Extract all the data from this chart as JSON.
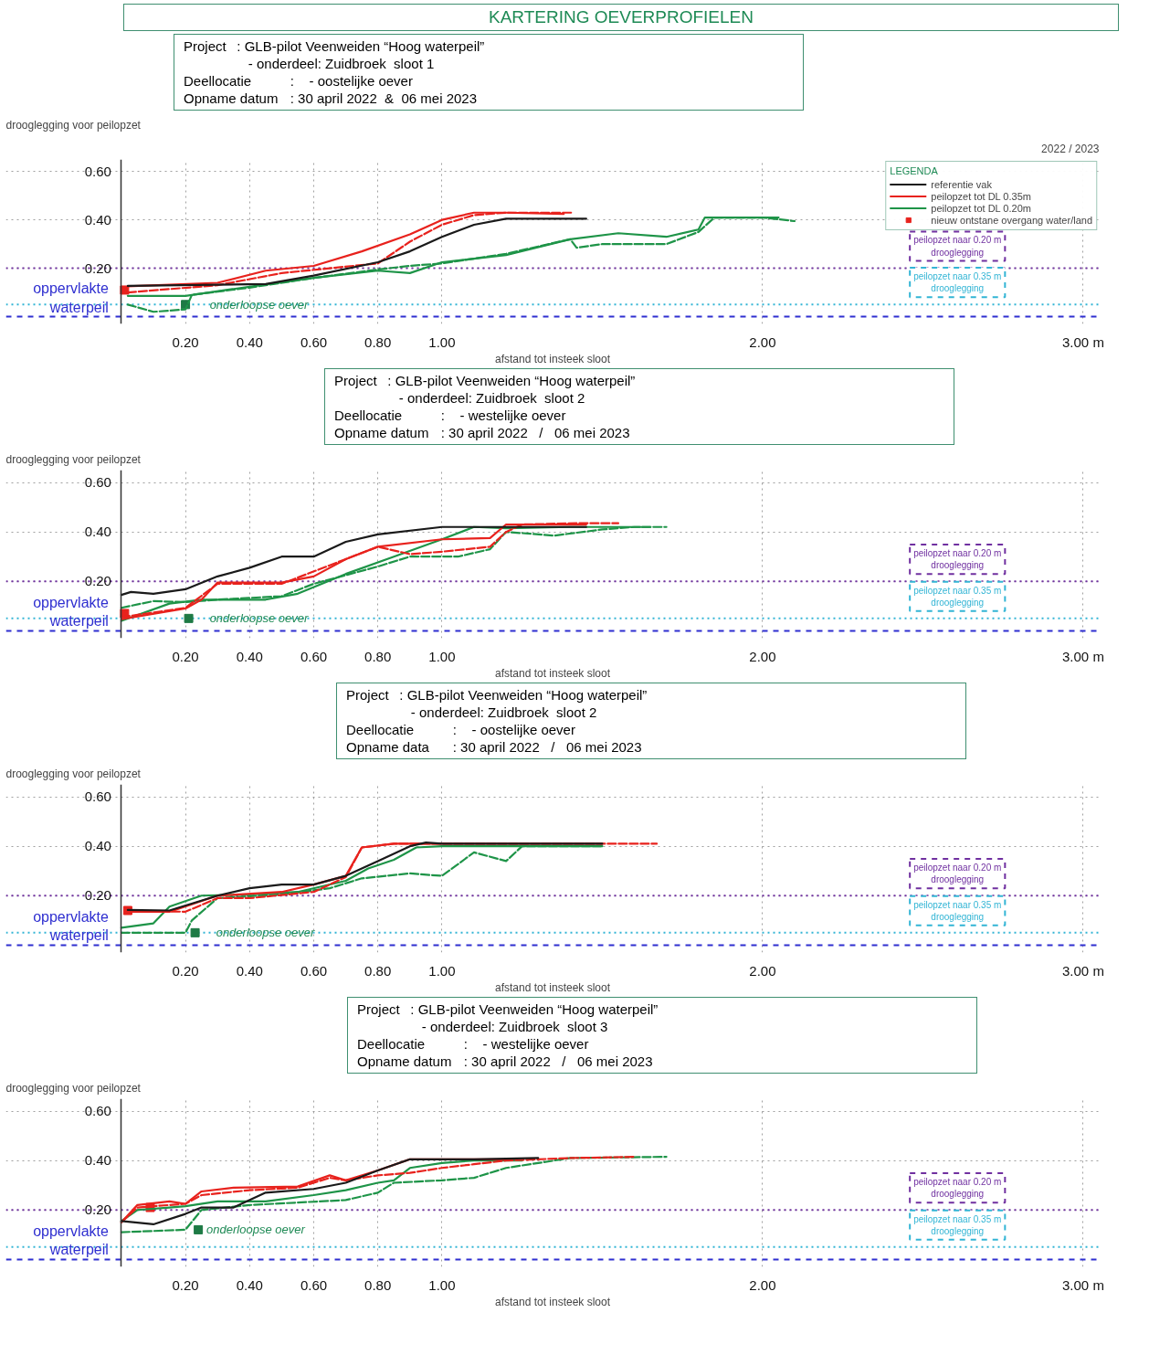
{
  "chart_data": [
    {
      "type": "line",
      "title": "KARTERING OEVERPROFIELEN",
      "subtitle": "2022 / 2023",
      "xlabel": "afstand tot insteek sloot",
      "ylabel": "drooglegging voor peilopzet",
      "legend": "top right",
      "legend_title": "LEGENDA",
      "grid": true,
      "xlim": [
        0,
        3.05
      ],
      "xticks": [
        {
          "value": 0.2,
          "label": "0.20"
        },
        {
          "value": 0.4,
          "label": "0.40"
        },
        {
          "value": 0.6,
          "label": "0.60"
        },
        {
          "value": 0.8,
          "label": "0.80"
        },
        {
          "value": 1.0,
          "label": "1.00"
        },
        {
          "value": 2.0,
          "label": "2.00"
        },
        {
          "value": 3.0,
          "label": "3.00 m"
        }
      ],
      "ylim": [
        -0.03,
        0.65
      ],
      "yticks": [
        {
          "value": 0.2,
          "label": "0.20"
        },
        {
          "value": 0.4,
          "label": "0.40"
        },
        {
          "value": 0.6,
          "label": "0.60"
        }
      ],
      "annotations": [
        "Project\t: GLB-pilot Veenweiden “Hoog waterpeil”",
        "\t   - onderdeel: Zuidbroek  sloot 1",
        "Deellocatie\t:    - oostelijke oever",
        "Opname datum\t: 30 april 2022  &  06 mei 2023",
        {
          "text": "onderloopse oever",
          "x": 0.25,
          "y": 0.05
        }
      ],
      "ref_lines": [
        {
          "axis": "y",
          "value": 0.2,
          "label": "peilopzet naar 0.20 m\ndrooglegging",
          "color": "#7030a0",
          "line_style": "dotted"
        },
        {
          "axis": "y",
          "value": 0.05,
          "label": "peilopzet naar 0.35 m\ndrooglegging",
          "color": "#33b5d5",
          "line_style": "dotted"
        },
        {
          "axis": "y",
          "value": 0,
          "label": "oppervlakte\nwaterpeil",
          "color": "#2f2fd0",
          "line_style": "dashed"
        }
      ],
      "series": [
        {
          "name": "referentie vak",
          "color": "#1a1a1a",
          "line_style": "solid",
          "x": [
            0.02,
            0.45,
            0.6,
            0.8,
            0.9,
            1.0,
            1.1,
            1.2,
            1.45
          ],
          "values": [
            0.127,
            0.135,
            0.17,
            0.225,
            0.27,
            0.33,
            0.38,
            0.405,
            0.405
          ]
        },
        {
          "name": "peilopzet tot DL 0.35m",
          "color": "#e8221d",
          "line_style": "solid",
          "x": [
            0.02,
            0.3,
            0.45,
            0.6,
            0.75,
            0.9,
            1.0,
            1.1,
            1.2,
            1.38
          ],
          "values": [
            0.125,
            0.14,
            0.19,
            0.21,
            0.27,
            0.34,
            0.4,
            0.43,
            0.43,
            0.425
          ]
        },
        {
          "color": "#e8221d",
          "line_style": "dashed",
          "x": [
            0.02,
            0.3,
            0.5,
            0.65,
            0.8,
            0.9,
            1.0,
            1.1,
            1.2,
            1.41
          ],
          "values": [
            0.1,
            0.13,
            0.18,
            0.2,
            0.22,
            0.31,
            0.38,
            0.42,
            0.43,
            0.43
          ]
        },
        {
          "name": "peilopzet tot DL 0.20m",
          "color": "#1e9448",
          "line_style": "solid",
          "x": [
            0.02,
            0.2,
            0.4,
            0.6,
            0.8,
            0.9,
            1.0,
            1.2,
            1.4,
            1.55,
            1.7,
            1.8,
            1.82,
            2.0,
            2.05
          ],
          "values": [
            0.086,
            0.086,
            0.124,
            0.16,
            0.19,
            0.18,
            0.225,
            0.255,
            0.32,
            0.345,
            0.33,
            0.36,
            0.41,
            0.41,
            0.41
          ]
        },
        {
          "color": "#1e9448",
          "line_style": "dashed",
          "x": [
            0.02,
            0.1,
            0.2,
            0.22,
            0.4,
            0.6,
            0.8,
            0.9,
            1.0,
            1.2,
            1.4,
            1.42,
            1.5,
            1.7,
            1.8,
            1.85,
            2.0,
            2.1
          ],
          "values": [
            0.05,
            0.02,
            0.03,
            0.09,
            0.12,
            0.16,
            0.195,
            0.21,
            0.22,
            0.26,
            0.32,
            0.285,
            0.3,
            0.3,
            0.35,
            0.41,
            0.41,
            0.395
          ]
        },
        {
          "type": "scatter",
          "name": "nieuw ontstane overgang water/land",
          "color": "#e8221d",
          "marker": "square",
          "x": [
            0.01
          ],
          "values": [
            0.11
          ]
        },
        {
          "type": "scatter",
          "color": "#1e7a45",
          "marker": "square",
          "x": [
            0.2
          ],
          "values": [
            0.05
          ]
        }
      ]
    },
    {
      "type": "line",
      "xlabel": "afstand tot insteek sloot",
      "ylabel": "drooglegging voor peilopzet",
      "grid": true,
      "xlim": [
        0,
        3.05
      ],
      "xticks": [
        {
          "value": 0.2,
          "label": "0.20"
        },
        {
          "value": 0.4,
          "label": "0.40"
        },
        {
          "value": 0.6,
          "label": "0.60"
        },
        {
          "value": 0.8,
          "label": "0.80"
        },
        {
          "value": 1.0,
          "label": "1.00"
        },
        {
          "value": 2.0,
          "label": "2.00"
        },
        {
          "value": 3.0,
          "label": "3.00 m"
        }
      ],
      "ylim": [
        -0.03,
        0.65
      ],
      "yticks": [
        {
          "value": 0.2,
          "label": "0.20"
        },
        {
          "value": 0.4,
          "label": "0.40"
        },
        {
          "value": 0.6,
          "label": "0.60"
        }
      ],
      "annotations": [
        "Project\t: GLB-pilot Veenweiden “Hoog waterpeil”",
        "\t   - onderdeel: Zuidbroek  sloot 2",
        "Deellocatie\t:    - westelijke oever",
        "Opname datum\t: 30 april 2022   /   06 mei 2023",
        {
          "text": "onderloopse oever",
          "x": 0.25,
          "y": 0.05
        }
      ],
      "ref_lines": [
        {
          "axis": "y",
          "value": 0.2,
          "label": "peilopzet naar 0.20 m\ndrooglegging",
          "color": "#7030a0",
          "line_style": "dotted"
        },
        {
          "axis": "y",
          "value": 0.05,
          "label": "peilopzet naar 0.35 m\ndrooglegging",
          "color": "#33b5d5",
          "line_style": "dotted"
        },
        {
          "axis": "y",
          "value": 0,
          "label": "oppervlakte\nwaterpeil",
          "color": "#2f2fd0",
          "line_style": "dashed"
        }
      ],
      "series": [
        {
          "color": "#1a1a1a",
          "line_style": "solid",
          "x": [
            0.0,
            0.03,
            0.1,
            0.2,
            0.3,
            0.4,
            0.5,
            0.6,
            0.7,
            0.8,
            1.0,
            1.2,
            1.45
          ],
          "values": [
            0.145,
            0.157,
            0.15,
            0.168,
            0.22,
            0.255,
            0.3,
            0.3,
            0.36,
            0.39,
            0.42,
            0.42,
            0.42
          ]
        },
        {
          "color": "#e8221d",
          "line_style": "solid",
          "x": [
            0.0,
            0.2,
            0.25,
            0.3,
            0.5,
            0.6,
            0.7,
            0.8,
            1.0,
            1.15,
            1.2,
            1.4,
            1.45
          ],
          "values": [
            0.047,
            0.09,
            0.126,
            0.195,
            0.195,
            0.22,
            0.29,
            0.34,
            0.37,
            0.375,
            0.43,
            0.43,
            0.43
          ]
        },
        {
          "color": "#e8221d",
          "line_style": "dashed",
          "x": [
            0.0,
            0.2,
            0.3,
            0.5,
            0.7,
            0.8,
            0.9,
            1.0,
            1.15,
            1.2,
            1.25,
            1.42,
            1.55
          ],
          "values": [
            0.055,
            0.093,
            0.19,
            0.19,
            0.29,
            0.34,
            0.31,
            0.32,
            0.34,
            0.4,
            0.43,
            0.435,
            0.435
          ]
        },
        {
          "color": "#1e9448",
          "line_style": "solid",
          "x": [
            0.0,
            0.15,
            0.25,
            0.45,
            0.55,
            0.7,
            0.85,
            1.0,
            1.1,
            1.2,
            1.4,
            1.65
          ],
          "values": [
            0.04,
            0.11,
            0.126,
            0.126,
            0.15,
            0.23,
            0.3,
            0.37,
            0.42,
            0.415,
            0.42,
            0.42
          ]
        },
        {
          "color": "#1e9448",
          "line_style": "dashed",
          "x": [
            0.0,
            0.1,
            0.2,
            0.3,
            0.5,
            0.6,
            0.8,
            0.9,
            1.05,
            1.15,
            1.2,
            1.35,
            1.5,
            1.6,
            1.7
          ],
          "values": [
            0.093,
            0.12,
            0.116,
            0.126,
            0.14,
            0.19,
            0.26,
            0.3,
            0.3,
            0.33,
            0.4,
            0.385,
            0.41,
            0.42,
            0.42
          ]
        },
        {
          "type": "scatter",
          "color": "#e8221d",
          "marker": "square",
          "x": [
            0.01
          ],
          "values": [
            0.07
          ]
        },
        {
          "type": "scatter",
          "color": "#1e7a45",
          "marker": "square",
          "x": [
            0.21
          ],
          "values": [
            0.05
          ]
        }
      ]
    },
    {
      "type": "line",
      "xlabel": "afstand tot insteek sloot",
      "ylabel": "drooglegging voor peilopzet",
      "grid": true,
      "xlim": [
        0,
        3.05
      ],
      "xticks": [
        {
          "value": 0.2,
          "label": "0.20"
        },
        {
          "value": 0.4,
          "label": "0.40"
        },
        {
          "value": 0.6,
          "label": "0.60"
        },
        {
          "value": 0.8,
          "label": "0.80"
        },
        {
          "value": 1.0,
          "label": "1.00"
        },
        {
          "value": 2.0,
          "label": "2.00"
        },
        {
          "value": 3.0,
          "label": "3.00 m"
        }
      ],
      "ylim": [
        -0.03,
        0.65
      ],
      "yticks": [
        {
          "value": 0.2,
          "label": "0.20"
        },
        {
          "value": 0.4,
          "label": "0.40"
        },
        {
          "value": 0.6,
          "label": "0.60"
        }
      ],
      "annotations": [
        "Project\t: GLB-pilot Veenweiden “Hoog waterpeil”",
        "\t   - onderdeel: Zuidbroek  sloot 2",
        "Deellocatie\t:    - oostelijke oever",
        "Opname data\t: 30 april 2022   /   06 mei 2023",
        {
          "text": "onderloopse oever",
          "x": 0.27,
          "y": 0.05
        }
      ],
      "ref_lines": [
        {
          "axis": "y",
          "value": 0.2,
          "label": "peilopzet naar 0.20 m\ndrooglegging",
          "color": "#7030a0",
          "line_style": "dotted"
        },
        {
          "axis": "y",
          "value": 0.05,
          "label": "peilopzet naar 0.35 m\ndrooglegging",
          "color": "#33b5d5",
          "line_style": "dotted"
        },
        {
          "axis": "y",
          "value": 0,
          "label": "oppervlakte\nwaterpeil",
          "color": "#2f2fd0",
          "line_style": "dashed"
        }
      ],
      "series": [
        {
          "color": "#1a1a1a",
          "line_style": "solid",
          "x": [
            0.02,
            0.15,
            0.3,
            0.4,
            0.5,
            0.6,
            0.7,
            0.8,
            0.9,
            0.95,
            1.0,
            1.5
          ],
          "values": [
            0.142,
            0.14,
            0.2,
            0.23,
            0.245,
            0.245,
            0.28,
            0.34,
            0.4,
            0.415,
            0.41,
            0.41
          ]
        },
        {
          "color": "#e8221d",
          "line_style": "solid",
          "x": [
            0.02,
            0.15,
            0.3,
            0.5,
            0.6,
            0.7,
            0.75,
            0.85,
            1.5
          ],
          "values": [
            0.135,
            0.135,
            0.2,
            0.215,
            0.245,
            0.28,
            0.395,
            0.41,
            0.41
          ]
        },
        {
          "color": "#e8221d",
          "line_style": "dashed",
          "x": [
            0.02,
            0.2,
            0.3,
            0.4,
            0.6,
            0.7,
            0.75,
            0.85,
            1.67
          ],
          "values": [
            0.139,
            0.135,
            0.19,
            0.19,
            0.215,
            0.275,
            0.395,
            0.41,
            0.41
          ]
        },
        {
          "color": "#1e9448",
          "line_style": "solid",
          "x": [
            0.0,
            0.1,
            0.15,
            0.25,
            0.4,
            0.55,
            0.7,
            0.77,
            0.85,
            0.92,
            1.0,
            1.5
          ],
          "values": [
            0.07,
            0.088,
            0.156,
            0.2,
            0.205,
            0.215,
            0.26,
            0.31,
            0.345,
            0.395,
            0.4,
            0.4
          ]
        },
        {
          "color": "#1e9448",
          "line_style": "dashed",
          "x": [
            0.0,
            0.2,
            0.22,
            0.3,
            0.5,
            0.65,
            0.75,
            0.9,
            1.0,
            1.1,
            1.2,
            1.25,
            1.5
          ],
          "values": [
            0.05,
            0.05,
            0.1,
            0.19,
            0.205,
            0.23,
            0.27,
            0.29,
            0.28,
            0.375,
            0.34,
            0.4,
            0.4
          ]
        },
        {
          "type": "scatter",
          "color": "#e8221d",
          "marker": "square",
          "x": [
            0.02
          ],
          "values": [
            0.14
          ]
        },
        {
          "type": "scatter",
          "color": "#1e7a45",
          "marker": "square",
          "x": [
            0.23
          ],
          "values": [
            0.05
          ]
        }
      ]
    },
    {
      "type": "line",
      "xlabel": "afstand tot insteek sloot",
      "ylabel": "drooglegging voor peilopzet",
      "grid": true,
      "xlim": [
        0,
        3.05
      ],
      "xticks": [
        {
          "value": 0.2,
          "label": "0.20"
        },
        {
          "value": 0.4,
          "label": "0.40"
        },
        {
          "value": 0.6,
          "label": "0.60"
        },
        {
          "value": 0.8,
          "label": "0.80"
        },
        {
          "value": 1.0,
          "label": "1.00"
        },
        {
          "value": 2.0,
          "label": "2.00"
        },
        {
          "value": 3.0,
          "label": "3.00 m"
        }
      ],
      "ylim": [
        -0.03,
        0.65
      ],
      "yticks": [
        {
          "value": 0.2,
          "label": "0.20"
        },
        {
          "value": 0.4,
          "label": "0.40"
        },
        {
          "value": 0.6,
          "label": "0.60"
        }
      ],
      "annotations": [
        "Project\t: GLB-pilot Veenweiden “Hoog waterpeil”",
        "\t   - onderdeel: Zuidbroek  sloot 3",
        "Deellocatie\t:    - westelijke oever",
        "Opname datum\t: 30 april 2022   /   06 mei 2023",
        {
          "text": "onderloopse oever",
          "x": 0.24,
          "y": 0.12
        }
      ],
      "ref_lines": [
        {
          "axis": "y",
          "value": 0.2,
          "label": "peilopzet naar 0.20 m\ndrooglegging",
          "color": "#7030a0",
          "line_style": "dotted"
        },
        {
          "axis": "y",
          "value": 0.05,
          "label": "peilopzet naar 0.35 m\ndrooglegging",
          "color": "#33b5d5",
          "line_style": "dotted"
        },
        {
          "axis": "y",
          "value": 0,
          "label": "oppervlakte\nwaterpeil",
          "color": "#2f2fd0",
          "line_style": "dashed"
        }
      ],
      "series": [
        {
          "color": "#1a1a1a",
          "line_style": "solid",
          "x": [
            0.0,
            0.1,
            0.2,
            0.25,
            0.35,
            0.45,
            0.6,
            0.7,
            0.8,
            0.9,
            1.1,
            1.3
          ],
          "values": [
            0.155,
            0.142,
            0.184,
            0.21,
            0.21,
            0.27,
            0.285,
            0.31,
            0.36,
            0.405,
            0.405,
            0.41
          ]
        },
        {
          "color": "#e8221d",
          "line_style": "solid",
          "x": [
            0.0,
            0.05,
            0.15,
            0.2,
            0.25,
            0.35,
            0.55,
            0.65,
            0.7,
            0.8,
            0.9,
            1.2
          ],
          "values": [
            0.15,
            0.22,
            0.235,
            0.225,
            0.275,
            0.29,
            0.295,
            0.34,
            0.32,
            0.36,
            0.405,
            0.405
          ]
        },
        {
          "color": "#e8221d",
          "line_style": "dashed",
          "x": [
            0.0,
            0.05,
            0.2,
            0.25,
            0.4,
            0.55,
            0.65,
            0.7,
            0.8,
            0.9,
            1.0,
            1.1,
            1.2,
            1.4,
            1.6
          ],
          "values": [
            0.15,
            0.21,
            0.225,
            0.26,
            0.28,
            0.29,
            0.33,
            0.32,
            0.34,
            0.35,
            0.37,
            0.385,
            0.4,
            0.41,
            0.415
          ]
        },
        {
          "color": "#1e9448",
          "line_style": "solid",
          "x": [
            0.0,
            0.05,
            0.15,
            0.2,
            0.3,
            0.45,
            0.6,
            0.7,
            0.8,
            0.85,
            0.9,
            1.0,
            1.1,
            1.25
          ],
          "values": [
            0.155,
            0.2,
            0.21,
            0.215,
            0.235,
            0.235,
            0.26,
            0.28,
            0.31,
            0.32,
            0.37,
            0.39,
            0.4,
            0.4
          ]
        },
        {
          "color": "#1e9448",
          "line_style": "dashed",
          "x": [
            0.0,
            0.2,
            0.25,
            0.4,
            0.55,
            0.7,
            0.8,
            0.85,
            1.0,
            1.1,
            1.2,
            1.4,
            1.7
          ],
          "values": [
            0.11,
            0.12,
            0.2,
            0.22,
            0.23,
            0.24,
            0.27,
            0.31,
            0.32,
            0.33,
            0.37,
            0.41,
            0.415
          ]
        },
        {
          "type": "scatter",
          "color": "#e8221d",
          "marker": "square",
          "x": [
            0.09
          ],
          "values": [
            0.21
          ]
        },
        {
          "type": "scatter",
          "color": "#1e7a45",
          "marker": "square",
          "x": [
            0.24
          ],
          "values": [
            0.12
          ]
        }
      ]
    }
  ]
}
